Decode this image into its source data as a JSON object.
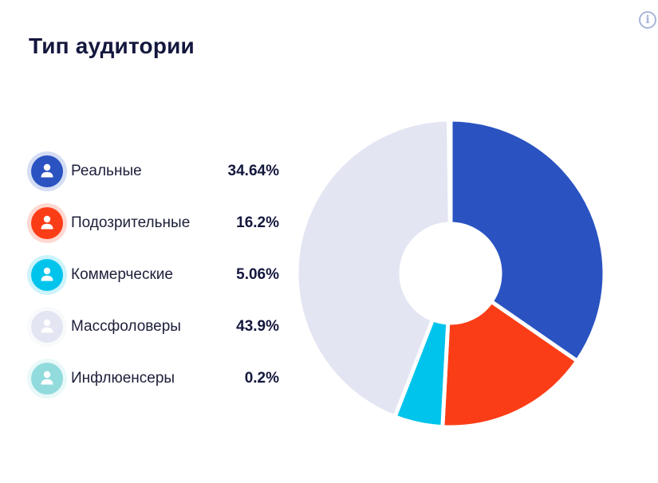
{
  "card": {
    "title": "Тип аудитории",
    "info_icon": "info-icon"
  },
  "colors": {
    "real": "#2a53c1",
    "suspicious": "#fb3d17",
    "commercial": "#00c4ec",
    "massfollowers": "#e3e5f2",
    "influencers": "#92dbdd"
  },
  "legend": [
    {
      "label": "Реальные",
      "value": "34.64%",
      "color": "#2a53c1",
      "icon": "user-icon"
    },
    {
      "label": "Подозрительные",
      "value": "16.2%",
      "color": "#fb3d17",
      "icon": "user-icon"
    },
    {
      "label": "Коммерческие",
      "value": "5.06%",
      "color": "#00c4ec",
      "icon": "user-icon"
    },
    {
      "label": "Массфоловеры",
      "value": "43.9%",
      "color": "#e3e5f2",
      "icon": "user-icon"
    },
    {
      "label": "Инфлюенсеры",
      "value": "0.2%",
      "color": "#92dbdd",
      "icon": "user-icon"
    }
  ],
  "chart_data": {
    "type": "pie",
    "title": "Тип аудитории",
    "categories": [
      "Реальные",
      "Подозрительные",
      "Коммерческие",
      "Массфоловеры",
      "Инфлюенсеры"
    ],
    "values": [
      34.64,
      16.2,
      5.06,
      43.9,
      0.2
    ],
    "colors": [
      "#2a53c1",
      "#fb3d17",
      "#00c4ec",
      "#e3e5f2",
      "#92dbdd"
    ],
    "donut": true,
    "legend_position": "left"
  }
}
